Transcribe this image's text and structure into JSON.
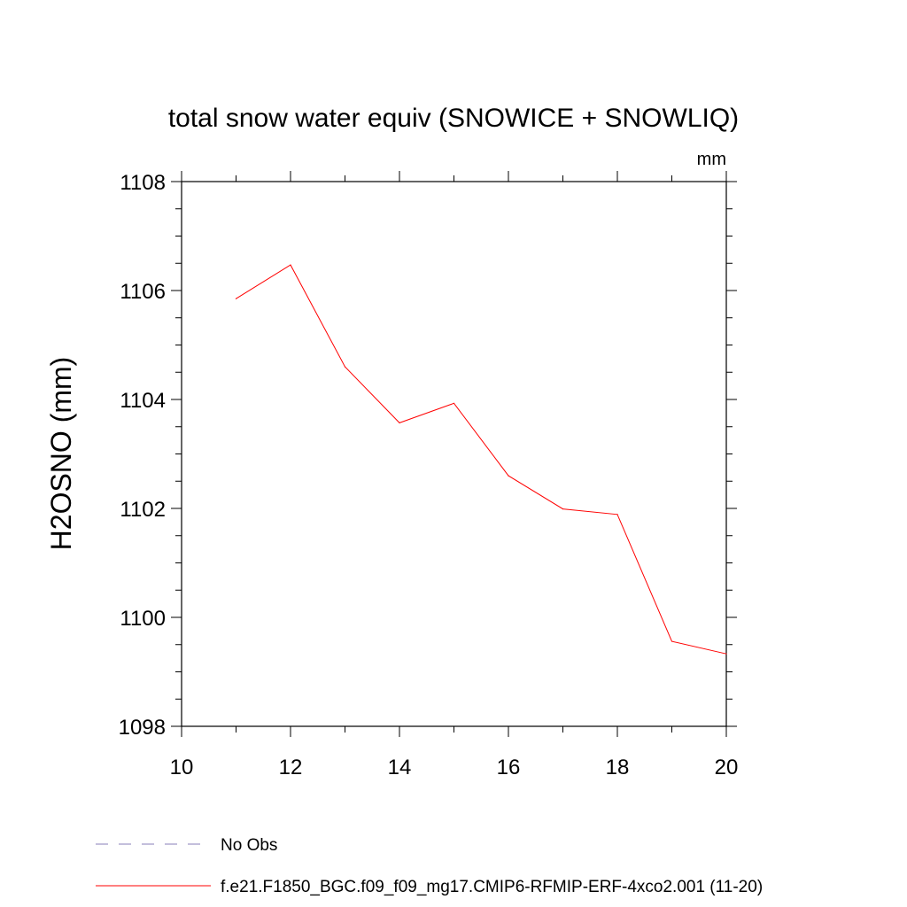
{
  "chart_data": {
    "type": "line",
    "title": "total snow water equiv (SNOWICE + SNOWLIQ)",
    "units": "mm",
    "ylabel": "H2OSNO  (mm)",
    "xlabel": "",
    "xlim": [
      10,
      20
    ],
    "ylim": [
      1098,
      1108
    ],
    "x_ticks": [
      10,
      12,
      14,
      16,
      18,
      20
    ],
    "x_tick_labels": [
      "10",
      "12",
      "14",
      "16",
      "18",
      "20"
    ],
    "y_ticks": [
      1098,
      1100,
      1102,
      1104,
      1106,
      1108
    ],
    "y_tick_labels": [
      "1098",
      "1100",
      "1102",
      "1104",
      "1106",
      "1108"
    ],
    "x_minor_step": 1,
    "y_minor_step": 0.5,
    "grid": false,
    "legend_placement": "bottom-left",
    "series": [
      {
        "name": "f.e21.F1850_BGC.f09_f09_mg17.CMIP6-RFMIP-ERF-4xco2.001 (11-20)",
        "color": "#ff0000",
        "style": "solid",
        "x": [
          11,
          12,
          13,
          14,
          15,
          16,
          17,
          18,
          19,
          20
        ],
        "y": [
          1105.85,
          1106.47,
          1104.6,
          1103.57,
          1103.93,
          1102.6,
          1101.99,
          1101.89,
          1099.56,
          1099.33
        ]
      }
    ],
    "legend": [
      {
        "label": "No Obs",
        "color": "#8a7fb8",
        "style": "dashed"
      },
      {
        "label": "f.e21.F1850_BGC.f09_f09_mg17.CMIP6-RFMIP-ERF-4xco2.001 (11-20)",
        "color": "#ff0000",
        "style": "solid"
      }
    ]
  }
}
